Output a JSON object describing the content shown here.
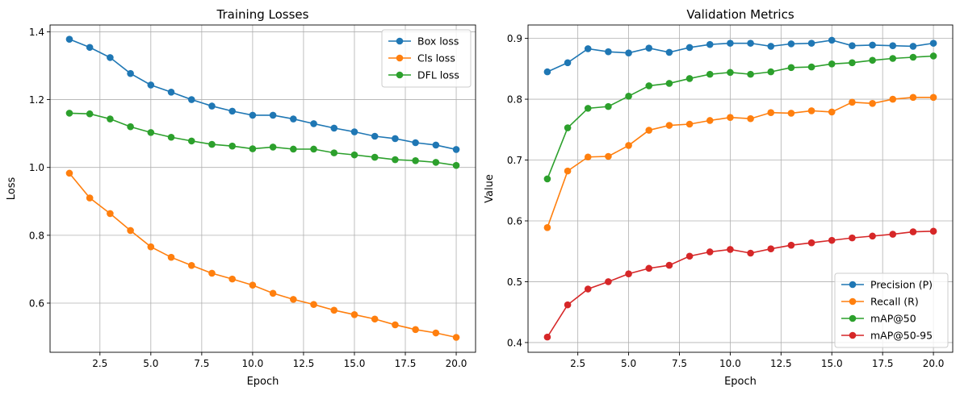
{
  "chart_data": [
    {
      "type": "line",
      "title": "Training Losses",
      "xlabel": "Epoch",
      "ylabel": "Loss",
      "xlim": [
        0.05,
        20.95
      ],
      "ylim": [
        0.455,
        1.42
      ],
      "xticks": [
        2.5,
        5.0,
        7.5,
        10.0,
        12.5,
        15.0,
        17.5,
        20.0
      ],
      "xtick_labels": [
        "2.5",
        "5.0",
        "7.5",
        "10.0",
        "12.5",
        "15.0",
        "17.5",
        "20.0"
      ],
      "yticks": [
        0.6,
        0.8,
        1.0,
        1.2,
        1.4
      ],
      "ytick_labels": [
        "0.6",
        "0.8",
        "1.0",
        "1.2",
        "1.4"
      ],
      "grid": true,
      "legend_position": "top-right",
      "x": [
        1,
        2,
        3,
        4,
        5,
        6,
        7,
        8,
        9,
        10,
        11,
        12,
        13,
        14,
        15,
        16,
        17,
        18,
        19,
        20
      ],
      "series": [
        {
          "name": "Box loss",
          "color": "#1f77b4",
          "values": [
            1.378,
            1.354,
            1.324,
            1.277,
            1.243,
            1.222,
            1.2,
            1.181,
            1.166,
            1.154,
            1.154,
            1.143,
            1.129,
            1.116,
            1.105,
            1.092,
            1.085,
            1.073,
            1.066,
            1.053
          ]
        },
        {
          "name": "Cls loss",
          "color": "#ff7f0e",
          "values": [
            0.983,
            0.91,
            0.864,
            0.814,
            0.766,
            0.735,
            0.711,
            0.688,
            0.671,
            0.653,
            0.629,
            0.611,
            0.596,
            0.579,
            0.566,
            0.553,
            0.536,
            0.522,
            0.512,
            0.499
          ]
        },
        {
          "name": "DFL loss",
          "color": "#2ca02c",
          "values": [
            1.16,
            1.158,
            1.143,
            1.12,
            1.103,
            1.089,
            1.078,
            1.068,
            1.063,
            1.055,
            1.06,
            1.054,
            1.054,
            1.043,
            1.037,
            1.03,
            1.023,
            1.02,
            1.015,
            1.006
          ]
        }
      ]
    },
    {
      "type": "line",
      "title": "Validation Metrics",
      "xlabel": "Epoch",
      "ylabel": "Value",
      "xlim": [
        0.05,
        20.95
      ],
      "ylim": [
        0.384,
        0.922
      ],
      "xticks": [
        2.5,
        5.0,
        7.5,
        10.0,
        12.5,
        15.0,
        17.5,
        20.0
      ],
      "xtick_labels": [
        "2.5",
        "5.0",
        "7.5",
        "10.0",
        "12.5",
        "15.0",
        "17.5",
        "20.0"
      ],
      "yticks": [
        0.4,
        0.5,
        0.6,
        0.7,
        0.8,
        0.9
      ],
      "ytick_labels": [
        "0.4",
        "0.5",
        "0.6",
        "0.7",
        "0.8",
        "0.9"
      ],
      "grid": true,
      "legend_position": "bottom-right",
      "x": [
        1,
        2,
        3,
        4,
        5,
        6,
        7,
        8,
        9,
        10,
        11,
        12,
        13,
        14,
        15,
        16,
        17,
        18,
        19,
        20
      ],
      "series": [
        {
          "name": "Precision (P)",
          "color": "#1f77b4",
          "values": [
            0.845,
            0.86,
            0.883,
            0.878,
            0.876,
            0.884,
            0.877,
            0.885,
            0.89,
            0.892,
            0.892,
            0.887,
            0.891,
            0.892,
            0.897,
            0.888,
            0.889,
            0.888,
            0.887,
            0.892
          ]
        },
        {
          "name": "Recall (R)",
          "color": "#ff7f0e",
          "values": [
            0.589,
            0.682,
            0.705,
            0.706,
            0.724,
            0.749,
            0.757,
            0.759,
            0.765,
            0.77,
            0.768,
            0.778,
            0.777,
            0.781,
            0.779,
            0.795,
            0.793,
            0.8,
            0.803,
            0.803
          ]
        },
        {
          "name": "mAP@50",
          "color": "#2ca02c",
          "values": [
            0.669,
            0.753,
            0.785,
            0.788,
            0.805,
            0.822,
            0.826,
            0.834,
            0.841,
            0.844,
            0.841,
            0.845,
            0.852,
            0.853,
            0.858,
            0.86,
            0.864,
            0.867,
            0.869,
            0.871
          ]
        },
        {
          "name": "mAP@50-95",
          "color": "#d62728",
          "values": [
            0.409,
            0.462,
            0.488,
            0.5,
            0.513,
            0.522,
            0.527,
            0.542,
            0.549,
            0.553,
            0.547,
            0.554,
            0.56,
            0.564,
            0.568,
            0.572,
            0.575,
            0.578,
            0.582,
            0.583
          ]
        }
      ]
    }
  ]
}
